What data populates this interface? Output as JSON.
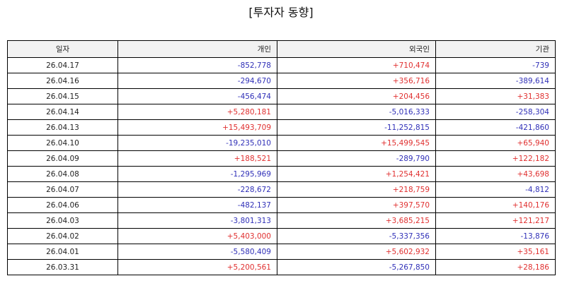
{
  "title": "[투자자 동향]",
  "colors": {
    "positive": "#e03030",
    "negative": "#3030b8",
    "header_bg": "#f2f2f2",
    "border": "#000000"
  },
  "table": {
    "headers": [
      "일자",
      "개인",
      "외국인",
      "기관"
    ],
    "rows": [
      [
        "26.04.17",
        "-852,778",
        "+710,474",
        "-739"
      ],
      [
        "26.04.16",
        "-294,670",
        "+356,716",
        "-389,614"
      ],
      [
        "26.04.15",
        "-456,474",
        "+204,456",
        "+31,383"
      ],
      [
        "26.04.14",
        "+5,280,181",
        "-5,016,333",
        "-258,304"
      ],
      [
        "26.04.13",
        "+15,493,709",
        "-11,252,815",
        "-421,860"
      ],
      [
        "26.04.10",
        "-19,235,010",
        "+15,499,545",
        "+65,940"
      ],
      [
        "26.04.09",
        "+188,521",
        "-289,790",
        "+122,182"
      ],
      [
        "26.04.08",
        "-1,295,969",
        "+1,254,421",
        "+43,698"
      ],
      [
        "26.04.07",
        "-228,672",
        "+218,759",
        "-4,812"
      ],
      [
        "26.04.06",
        "-482,137",
        "+397,570",
        "+140,176"
      ],
      [
        "26.04.03",
        "-3,801,313",
        "+3,685,215",
        "+121,217"
      ],
      [
        "26.04.02",
        "+5,403,000",
        "-5,337,356",
        "-13,876"
      ],
      [
        "26.04.01",
        "-5,580,409",
        "+5,602,932",
        "+35,161"
      ],
      [
        "26.03.31",
        "+5,200,561",
        "-5,267,850",
        "+28,186"
      ]
    ]
  }
}
